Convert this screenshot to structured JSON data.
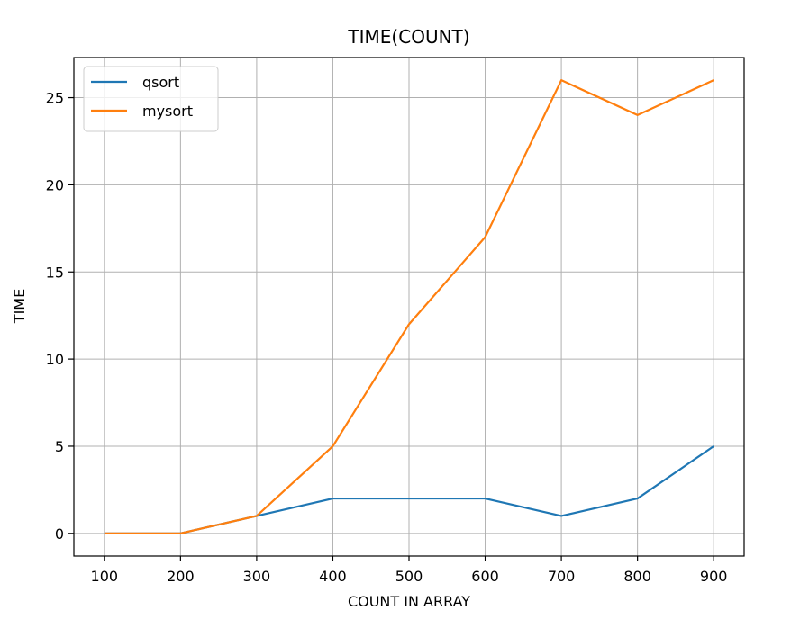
{
  "chart_data": {
    "type": "line",
    "title": "TIME(COUNT)",
    "xlabel": "COUNT IN ARRAY",
    "ylabel": "TIME",
    "x": [
      100,
      200,
      300,
      400,
      500,
      600,
      700,
      800,
      900
    ],
    "xticks": [
      "100",
      "200",
      "300",
      "400",
      "500",
      "600",
      "700",
      "800",
      "900"
    ],
    "yticks": [
      0,
      5,
      10,
      15,
      20,
      25
    ],
    "xlim": [
      60,
      940
    ],
    "ylim": [
      -1.3,
      27.3
    ],
    "grid": true,
    "legend_position": "top-left",
    "series": [
      {
        "name": "qsort",
        "color": "#1f77b4",
        "values": [
          0,
          0,
          1,
          2,
          2,
          2,
          1,
          2,
          5
        ]
      },
      {
        "name": "mysort",
        "color": "#ff7f0e",
        "values": [
          0,
          0,
          1,
          5,
          12,
          17,
          26,
          24,
          26
        ]
      }
    ]
  }
}
